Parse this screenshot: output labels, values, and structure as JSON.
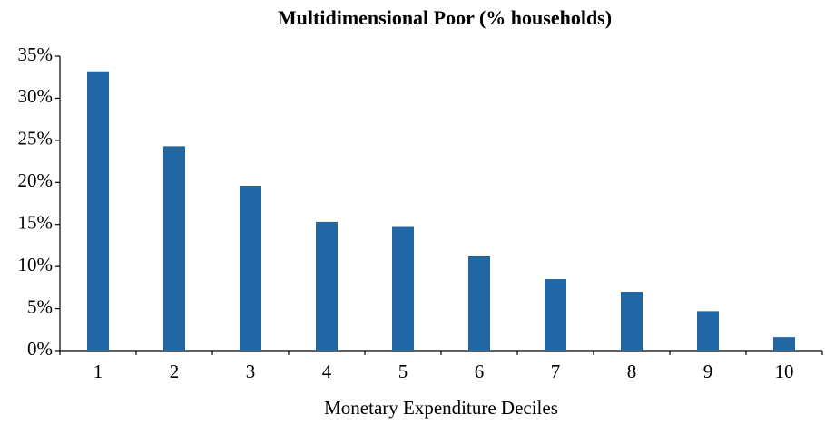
{
  "chart_data": {
    "type": "bar",
    "title": "Multidimensional Poor (% households)",
    "x_label": "Monetary Expenditure Deciles",
    "categories": [
      "1",
      "2",
      "3",
      "4",
      "5",
      "6",
      "7",
      "8",
      "9",
      "10"
    ],
    "values": [
      33.2,
      24.3,
      19.6,
      15.3,
      14.7,
      11.2,
      8.5,
      7.0,
      4.7,
      1.6
    ],
    "color": "#2166a5",
    "ylim": [
      0,
      35
    ],
    "yticks": [
      {
        "value": 0,
        "label": "0%"
      },
      {
        "value": 5,
        "label": "5%"
      },
      {
        "value": 10,
        "label": "10%"
      },
      {
        "value": 15,
        "label": "15%"
      },
      {
        "value": 20,
        "label": "20%"
      },
      {
        "value": 25,
        "label": "25%"
      },
      {
        "value": 30,
        "label": "30%"
      },
      {
        "value": 35,
        "label": "35%"
      }
    ],
    "grid": false
  }
}
